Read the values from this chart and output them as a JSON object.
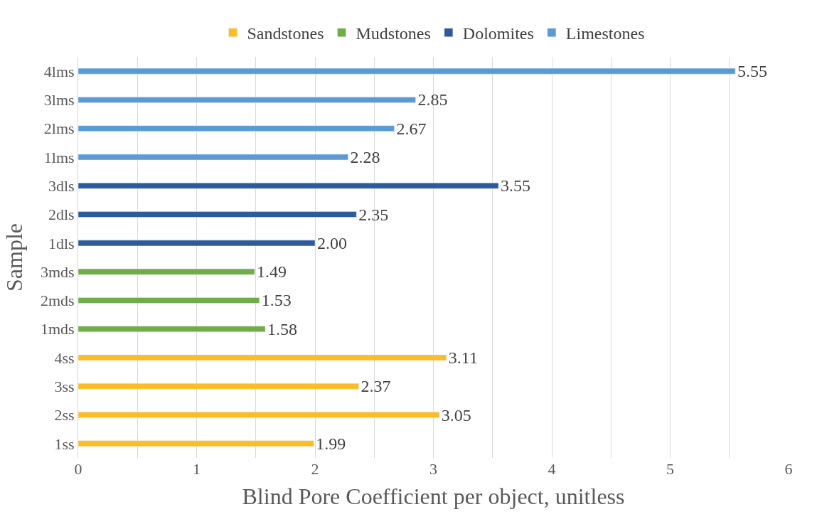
{
  "chart_data": {
    "type": "bar",
    "orientation": "horizontal",
    "xlabel": "Blind Pore Coefficient per object, unitless",
    "ylabel": "Sample",
    "categories": [
      "4lms",
      "3lms",
      "2lms",
      "1lms",
      "3dls",
      "2dls",
      "1dls",
      "3mds",
      "2mds",
      "1mds",
      "4ss",
      "3ss",
      "2ss",
      "1ss"
    ],
    "series": [
      {
        "name": "Sandstones",
        "color": "#fbbc26",
        "values": [
          null,
          null,
          null,
          null,
          null,
          null,
          null,
          null,
          null,
          null,
          3.11,
          2.37,
          3.05,
          1.99
        ],
        "value_labels": [
          null,
          null,
          null,
          null,
          null,
          null,
          null,
          null,
          null,
          null,
          "3.11",
          "2.37",
          "3.05",
          "1.99"
        ]
      },
      {
        "name": "Mudstones",
        "color": "#70ad47",
        "values": [
          null,
          null,
          null,
          null,
          null,
          null,
          null,
          1.49,
          1.53,
          1.58,
          null,
          null,
          null,
          null
        ],
        "value_labels": [
          null,
          null,
          null,
          null,
          null,
          null,
          null,
          "1.49",
          "1.53",
          "1.58",
          null,
          null,
          null,
          null
        ]
      },
      {
        "name": "Dolomites",
        "color": "#2e5a9c",
        "values": [
          null,
          null,
          null,
          null,
          3.55,
          2.35,
          2.0,
          null,
          null,
          null,
          null,
          null,
          null,
          null
        ],
        "value_labels": [
          null,
          null,
          null,
          null,
          "3.55",
          "2.35",
          "2.00",
          null,
          null,
          null,
          null,
          null,
          null,
          null
        ]
      },
      {
        "name": "Limestones",
        "color": "#5b9bd5",
        "values": [
          5.55,
          2.85,
          2.67,
          2.28,
          null,
          null,
          null,
          null,
          null,
          null,
          null,
          null,
          null,
          null
        ],
        "value_labels": [
          "5.55",
          "2.85",
          "2.67",
          "2.28",
          null,
          null,
          null,
          null,
          null,
          null,
          null,
          null,
          null,
          null
        ]
      }
    ],
    "xlim": [
      0,
      6
    ],
    "xticks": [
      0,
      {
        "value": 0.5,
        "label": null
      },
      1,
      {
        "value": 1.5,
        "label": null
      },
      2,
      {
        "value": 2.5,
        "label": null
      },
      3,
      {
        "value": 3.5,
        "label": null
      },
      4,
      {
        "value": 4.5,
        "label": null
      },
      5,
      {
        "value": 5.5,
        "label": null
      },
      6
    ],
    "grid": "x",
    "legend": "top"
  }
}
